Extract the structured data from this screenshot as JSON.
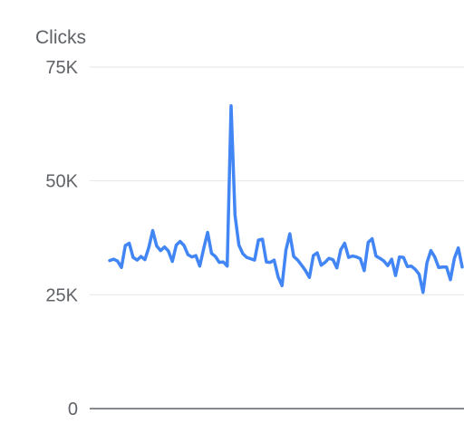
{
  "chart_data": {
    "type": "line",
    "title": "",
    "xlabel": "",
    "ylabel": "Clicks",
    "ylim": [
      0,
      75000
    ],
    "y_ticks": [
      {
        "value": 0,
        "label": "0"
      },
      {
        "value": 25000,
        "label": "25K"
      },
      {
        "value": 50000,
        "label": "50K"
      },
      {
        "value": 75000,
        "label": "75K"
      }
    ],
    "grid": true,
    "legend": "none",
    "series": [
      {
        "color": "#4285f4",
        "values": [
          32500,
          32800,
          32400,
          31000,
          35800,
          36300,
          33200,
          32600,
          33400,
          32700,
          35400,
          39100,
          35700,
          34700,
          35500,
          34600,
          32300,
          35900,
          36700,
          35800,
          33800,
          33300,
          33600,
          31300,
          35100,
          38700,
          34100,
          33400,
          32100,
          32200,
          31300,
          66500,
          42500,
          35900,
          34000,
          33200,
          32900,
          32600,
          37000,
          37200,
          32200,
          32100,
          32600,
          28900,
          27000,
          34800,
          38400,
          33400,
          32600,
          31500,
          30300,
          28800,
          33600,
          34200,
          31500,
          32100,
          33000,
          32700,
          30900,
          34900,
          36300,
          33200,
          33500,
          33300,
          32900,
          30300,
          36500,
          37300,
          33500,
          33000,
          32400,
          31400,
          32800,
          29200,
          33300,
          33200,
          31200,
          31300,
          30600,
          29500,
          25500,
          32000,
          34700,
          33300,
          31000,
          31100,
          31100,
          28300,
          33000,
          35300,
          31100
        ]
      }
    ]
  }
}
